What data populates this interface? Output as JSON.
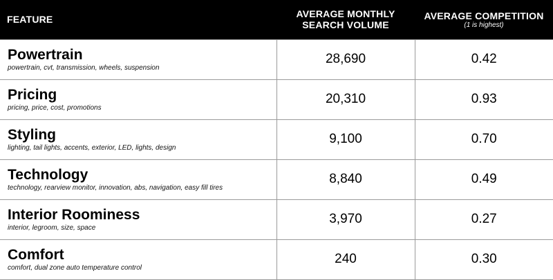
{
  "header": {
    "feature": "FEATURE",
    "volume_line1": "AVERAGE MONTHLY",
    "volume_line2": "SEARCH VOLUME",
    "competition": "AVERAGE COMPETITION",
    "competition_note": "(1 is highest)"
  },
  "rows": [
    {
      "name": "Powertrain",
      "keywords": "powertrain, cvt, transmission, wheels, suspension",
      "volume": "28,690",
      "competition": "0.42"
    },
    {
      "name": "Pricing",
      "keywords": "pricing, price, cost, promotions",
      "volume": "20,310",
      "competition": "0.93"
    },
    {
      "name": "Styling",
      "keywords": "lighting, tail lights, accents, exterior, LED, lights, design",
      "volume": "9,100",
      "competition": "0.70"
    },
    {
      "name": "Technology",
      "keywords": "technology, rearview monitor, innovation, abs, navigation, easy fill tires",
      "volume": "8,840",
      "competition": "0.49"
    },
    {
      "name": "Interior Roominess",
      "keywords": "interior, legroom, size, space",
      "volume": "3,970",
      "competition": "0.27"
    },
    {
      "name": "Comfort",
      "keywords": "comfort, dual zone auto temperature control",
      "volume": "240",
      "competition": "0.30"
    }
  ]
}
